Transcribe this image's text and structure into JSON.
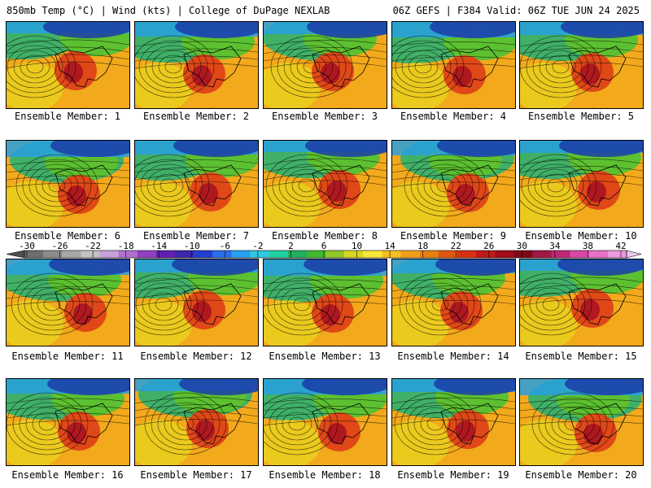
{
  "header": {
    "left": "850mb Temp (°C) | Wind (kts) | College of DuPage NEXLAB",
    "right": "06Z GEFS | F384 Valid: 06Z TUE JUN 24 2025"
  },
  "colorbar": {
    "labels": [
      "-30",
      "-26",
      "-22",
      "-18",
      "-14",
      "-10",
      "-6",
      "-2",
      "2",
      "6",
      "10",
      "14",
      "18",
      "22",
      "26",
      "30",
      "34",
      "38",
      "42"
    ],
    "colors": [
      "#6e6e6e",
      "#8c8c8c",
      "#a8a8a8",
      "#c4c4c4",
      "#c8a0dc",
      "#b070d0",
      "#9040c0",
      "#6020b0",
      "#3c28a8",
      "#2040d0",
      "#2c6ee8",
      "#28a0f0",
      "#30c8e0",
      "#20d0a0",
      "#20b060",
      "#40b830",
      "#90c828",
      "#d8d820",
      "#f8e838",
      "#f8c020",
      "#f0a018",
      "#e88010",
      "#e05810",
      "#d83010",
      "#c01818",
      "#a00c18",
      "#800818",
      "#a01848",
      "#c02878",
      "#d848a8",
      "#e870c8",
      "#f098e0"
    ],
    "pink_tail": "#f0c8f0"
  },
  "members": [
    "Ensemble Member: 1",
    "Ensemble Member: 2",
    "Ensemble Member: 3",
    "Ensemble Member: 4",
    "Ensemble Member: 5",
    "Ensemble Member: 6",
    "Ensemble Member: 7",
    "Ensemble Member: 8",
    "Ensemble Member: 9",
    "Ensemble Member: 10",
    "Ensemble Member: 11",
    "Ensemble Member: 12",
    "Ensemble Member: 13",
    "Ensemble Member: 14",
    "Ensemble Member: 15",
    "Ensemble Member: 16",
    "Ensemble Member: 17",
    "Ensemble Member: 18",
    "Ensemble Member: 19",
    "Ensemble Member: 20"
  ],
  "map_colors": {
    "cold": "#1a3ca8",
    "cool": "#28a0e0",
    "mild": "#2cb070",
    "green": "#5cc030",
    "yellow": "#e8d820",
    "orange": "#f2a91c",
    "red": "#e04818",
    "hot": "#b01820"
  }
}
